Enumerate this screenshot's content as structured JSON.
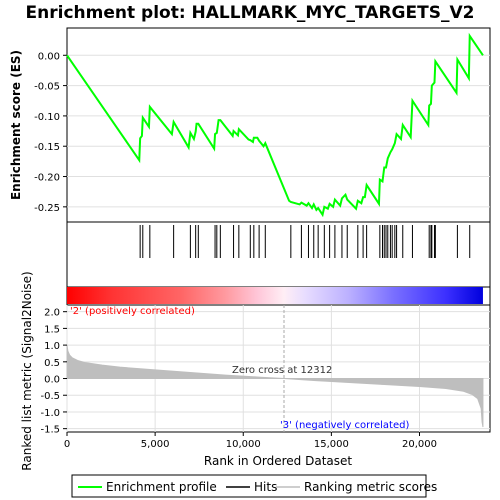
{
  "chart_data": [
    {
      "type": "line",
      "title": "Enrichment plot: HALLMARK_MYC_TARGETS_V2",
      "ylabel": "Enrichment score (ES)",
      "xlim": [
        0,
        24000
      ],
      "ylim": [
        -0.275,
        0.045
      ],
      "yticks": [
        "0.00",
        "-0.05",
        "-0.10",
        "-0.15",
        "-0.20",
        "-0.25"
      ],
      "ytick_values": [
        0.0,
        -0.05,
        -0.1,
        -0.15,
        -0.2,
        -0.25
      ],
      "grid": true,
      "series": [
        {
          "name": "Enrichment profile",
          "color": "#00ff00",
          "x": [
            0,
            4100,
            4150,
            4250,
            4300,
            4650,
            4700,
            5950,
            6050,
            6900,
            7000,
            7200,
            7300,
            7350,
            7450,
            8350,
            8400,
            8500,
            8600,
            8700,
            9400,
            9450,
            9700,
            9750,
            10300,
            10400,
            10550,
            10600,
            10800,
            10900,
            11150,
            11250,
            12600,
            12700,
            13200,
            13300,
            13600,
            13700,
            13900,
            14000,
            14150,
            14250,
            14500,
            14600,
            14800,
            14900,
            15100,
            15200,
            15500,
            15600,
            15800,
            15900,
            16400,
            16500,
            16700,
            16800,
            16900,
            17000,
            17700,
            17750,
            17900,
            18000,
            18100,
            18200,
            18350,
            18450,
            18600,
            18700,
            18950,
            19050,
            19500,
            19600,
            20500,
            20550,
            20650,
            20700,
            20850,
            20900,
            22100,
            22150,
            22800,
            22850,
            23600
          ],
          "y": [
            0.0,
            -0.173,
            -0.137,
            -0.133,
            -0.103,
            -0.118,
            -0.085,
            -0.13,
            -0.11,
            -0.152,
            -0.128,
            -0.138,
            -0.126,
            -0.113,
            -0.113,
            -0.154,
            -0.13,
            -0.128,
            -0.107,
            -0.107,
            -0.133,
            -0.125,
            -0.132,
            -0.122,
            -0.139,
            -0.14,
            -0.143,
            -0.136,
            -0.136,
            -0.141,
            -0.15,
            -0.145,
            -0.24,
            -0.242,
            -0.246,
            -0.243,
            -0.248,
            -0.244,
            -0.252,
            -0.246,
            -0.255,
            -0.252,
            -0.263,
            -0.25,
            -0.253,
            -0.245,
            -0.25,
            -0.238,
            -0.248,
            -0.236,
            -0.23,
            -0.238,
            -0.253,
            -0.24,
            -0.244,
            -0.234,
            -0.234,
            -0.214,
            -0.245,
            -0.205,
            -0.208,
            -0.185,
            -0.185,
            -0.17,
            -0.16,
            -0.155,
            -0.145,
            -0.13,
            -0.138,
            -0.115,
            -0.135,
            -0.075,
            -0.115,
            -0.083,
            -0.08,
            -0.05,
            -0.045,
            -0.01,
            -0.062,
            -0.007,
            -0.038,
            0.032,
            0.0
          ]
        }
      ]
    },
    {
      "type": "scatter",
      "title": "Hits",
      "xlim": [
        0,
        24000
      ],
      "x": [
        4150,
        4300,
        4700,
        6050,
        7000,
        7300,
        7450,
        8400,
        8500,
        8700,
        9450,
        9750,
        10400,
        10600,
        10900,
        11250,
        12700,
        13300,
        13700,
        14000,
        14250,
        14600,
        14900,
        15200,
        15600,
        15900,
        16500,
        16800,
        17000,
        17750,
        17900,
        18000,
        18100,
        18200,
        18350,
        18450,
        18600,
        18700,
        19050,
        19600,
        20550,
        20650,
        20700,
        20850,
        20900,
        22150,
        22850
      ]
    },
    {
      "type": "heatmap",
      "xlim": [
        0,
        24000
      ],
      "stops": [
        {
          "x": 0,
          "color": "#ff0000"
        },
        {
          "x": 2500,
          "color": "#ff3333"
        },
        {
          "x": 6500,
          "color": "#ff6666"
        },
        {
          "x": 9000,
          "color": "#ff9aa0"
        },
        {
          "x": 10800,
          "color": "#ffc6d8"
        },
        {
          "x": 12312,
          "color": "#ffeef5"
        },
        {
          "x": 13500,
          "color": "#e8ddff"
        },
        {
          "x": 16000,
          "color": "#bbb0ff"
        },
        {
          "x": 18500,
          "color": "#7a70ff"
        },
        {
          "x": 21500,
          "color": "#3c30ff"
        },
        {
          "x": 23600,
          "color": "#0000dd"
        }
      ]
    },
    {
      "type": "area",
      "ylabel": "Ranked list metric (Signal2Noise)",
      "xlabel": "Rank in Ordered Dataset",
      "xlim": [
        0,
        24000
      ],
      "ylim": [
        -1.6,
        2.2
      ],
      "xticks": [
        "0",
        "5,000",
        "10,000",
        "15,000",
        "20,000"
      ],
      "xtick_values": [
        0,
        5000,
        10000,
        15000,
        20000
      ],
      "yticks": [
        "2.0",
        "1.5",
        "1.0",
        "0.5",
        "0.0",
        "-0.5",
        "-1.0",
        "-1.5"
      ],
      "ytick_values": [
        2.0,
        1.5,
        1.0,
        0.5,
        0.0,
        -0.5,
        -1.0,
        -1.5
      ],
      "grid": true,
      "color": "#bebebe",
      "x": [
        0,
        50,
        150,
        300,
        600,
        1000,
        2000,
        3000,
        5000,
        7000,
        9000,
        11000,
        12312,
        14000,
        16000,
        18000,
        20000,
        21500,
        22500,
        23000,
        23300,
        23500,
        23550,
        23600
      ],
      "values": [
        1.0,
        0.82,
        0.7,
        0.62,
        0.54,
        0.48,
        0.4,
        0.34,
        0.26,
        0.18,
        0.1,
        0.04,
        0.0,
        -0.06,
        -0.12,
        -0.18,
        -0.24,
        -0.3,
        -0.38,
        -0.48,
        -0.6,
        -0.9,
        -1.3,
        -1.45
      ],
      "zero_cross": 12312,
      "annotations": {
        "zero_cross": "Zero cross at 12312",
        "positive": "'2' (positively correlated)",
        "negative": "'3' (negatively correlated)"
      },
      "annotation_colors": {
        "positive": "#ff0000",
        "negative": "#0000ff"
      }
    }
  ],
  "legend": {
    "placement": "bottom",
    "items": [
      {
        "label": "Enrichment profile",
        "color": "#00ff00"
      },
      {
        "label": "Hits",
        "color": "#000000"
      },
      {
        "label": "Ranking metric scores",
        "color": "#bebebe"
      }
    ]
  }
}
